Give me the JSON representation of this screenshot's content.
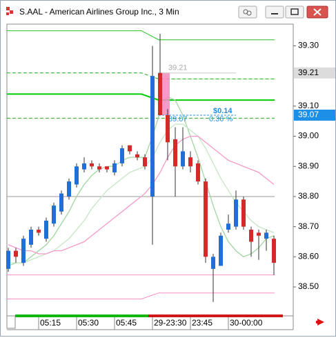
{
  "window": {
    "title": "S.AAL - American Airlines Group Inc., 3 Min"
  },
  "chart_data": {
    "type": "candlestick",
    "categories": [
      null,
      null,
      null,
      null,
      "05:15",
      null,
      null,
      null,
      null,
      "05:30",
      null,
      null,
      null,
      null,
      "05:45",
      null,
      null,
      null,
      null,
      "29-23:30",
      null,
      null,
      null,
      null,
      "23:45",
      null,
      null,
      null,
      null,
      "30-00:00",
      null,
      null,
      null,
      null,
      null,
      null
    ],
    "open": [
      38.56,
      38.62,
      38.58,
      38.64,
      38.69,
      38.66,
      38.71,
      38.75,
      38.8,
      38.84,
      38.89,
      38.91,
      38.9,
      38.9,
      38.88,
      38.91,
      38.97,
      38.94,
      38.93,
      38.8,
      39.21,
      39.07,
      38.99,
      38.9,
      38.93,
      38.91,
      38.85,
      38.56,
      38.57,
      38.69,
      38.7,
      38.79,
      38.69,
      38.68,
      38.66,
      38.66
    ],
    "high": [
      38.63,
      38.63,
      38.67,
      38.7,
      38.7,
      38.73,
      38.78,
      38.82,
      38.86,
      38.91,
      38.93,
      38.92,
      38.91,
      38.9,
      38.92,
      38.97,
      38.97,
      38.95,
      38.94,
      39.3,
      39.34,
      39.09,
      39.03,
      39.03,
      38.95,
      38.92,
      38.86,
      38.61,
      38.68,
      38.74,
      38.82,
      38.8,
      38.7,
      38.69,
      38.69,
      38.67
    ],
    "low": [
      38.55,
      38.58,
      38.57,
      38.63,
      38.67,
      38.65,
      38.7,
      38.74,
      38.79,
      38.83,
      38.88,
      38.89,
      38.88,
      38.88,
      38.87,
      38.9,
      38.94,
      38.92,
      38.89,
      38.64,
      39.07,
      38.92,
      38.8,
      38.89,
      38.88,
      38.84,
      38.58,
      38.45,
      38.57,
      38.68,
      38.69,
      38.69,
      38.6,
      38.59,
      38.62,
      38.54
    ],
    "close": [
      38.62,
      38.6,
      38.66,
      38.69,
      38.68,
      38.72,
      38.77,
      38.81,
      38.85,
      38.9,
      38.91,
      38.9,
      38.89,
      38.89,
      38.91,
      38.96,
      38.95,
      38.93,
      38.9,
      39.2,
      39.07,
      38.98,
      38.9,
      38.95,
      38.9,
      38.85,
      38.6,
      38.6,
      38.67,
      38.71,
      38.79,
      38.7,
      38.65,
      38.67,
      38.68,
      38.58
    ],
    "up_color": "#1f6fd6",
    "down_color": "#d42a2a",
    "overlays": [
      {
        "color": "#9fd69f",
        "values": [
          38.57,
          38.58,
          38.58,
          38.6,
          38.62,
          38.64,
          38.67,
          38.71,
          38.75,
          38.8,
          38.84,
          38.87,
          38.89,
          38.9,
          38.9,
          38.92,
          38.93,
          38.93,
          38.93,
          39.0,
          39.08,
          39.13,
          39.12,
          39.07,
          39.0,
          38.93,
          38.85,
          38.77,
          38.7,
          38.65,
          38.62,
          38.6,
          38.61,
          38.63,
          38.66,
          38.67
        ]
      },
      {
        "color": "#c4e6c4",
        "values": [
          38.58,
          38.58,
          38.58,
          38.59,
          38.6,
          38.61,
          38.62,
          38.64,
          38.66,
          38.69,
          38.72,
          38.76,
          38.79,
          38.82,
          38.84,
          38.86,
          38.88,
          38.89,
          38.9,
          38.93,
          38.98,
          39.02,
          39.04,
          39.04,
          39.02,
          39.0,
          38.96,
          38.91,
          38.86,
          38.82,
          38.78,
          38.75,
          38.72,
          38.7,
          38.69,
          38.68
        ]
      },
      {
        "color": "#f59ac8",
        "values": [
          38.64,
          38.63,
          38.62,
          38.62,
          38.61,
          38.61,
          38.62,
          38.62,
          38.63,
          38.64,
          38.65,
          38.67,
          38.69,
          38.71,
          38.73,
          38.75,
          38.77,
          38.79,
          38.81,
          38.84,
          38.88,
          38.93,
          38.97,
          38.99,
          39.0,
          39.0,
          38.98,
          38.96,
          38.94,
          38.92,
          38.91,
          38.9,
          38.89,
          38.88,
          38.86,
          38.84
        ]
      }
    ],
    "levels": [
      {
        "left": 39.35,
        "right": 39.32,
        "color": "#22c222",
        "dashed": false
      },
      {
        "left": 39.21,
        "right": 39.19,
        "color": "#22aa22",
        "dashed": true
      },
      {
        "left": 39.14,
        "right": 39.12,
        "color": "#00cc00",
        "dashed": false
      },
      {
        "left": 39.06,
        "right": 39.06,
        "color": "#22aa22",
        "dashed": true
      },
      {
        "left": 38.8,
        "right": 38.8,
        "color": "#999999",
        "dashed": false
      },
      {
        "left": 38.54,
        "right": 38.54,
        "color": "#ff8fc8",
        "dashed": false
      },
      {
        "left": 38.46,
        "right": 38.48,
        "color": "#ff8fc8",
        "dashed": false
      }
    ],
    "measure": {
      "from": 39.21,
      "to": 39.07,
      "from_label": "39.21",
      "to_label": "39.07",
      "change_label": "$0.14",
      "pct_label": "0.36 %"
    },
    "axis_markers": [
      {
        "value": 39.21,
        "label": "39.21",
        "bg": "#dcdcdc",
        "fg": "#000000"
      },
      {
        "value": 39.07,
        "label": "39.07",
        "bg": "#1e8fe6",
        "fg": "#ffffff"
      }
    ],
    "ylim": [
      38.404,
      39.372
    ],
    "yticks": [
      {
        "value": 39.3,
        "label": "39.30"
      },
      {
        "value": 39.1,
        "label": "39.10"
      },
      {
        "value": 39,
        "label": "39.00"
      },
      {
        "value": 38.9,
        "label": "38.90"
      },
      {
        "value": 38.8,
        "label": "38.80"
      },
      {
        "value": 38.7,
        "label": "38.70"
      },
      {
        "value": 38.6,
        "label": "38.60"
      },
      {
        "value": 38.5,
        "label": "38.50"
      }
    ]
  }
}
